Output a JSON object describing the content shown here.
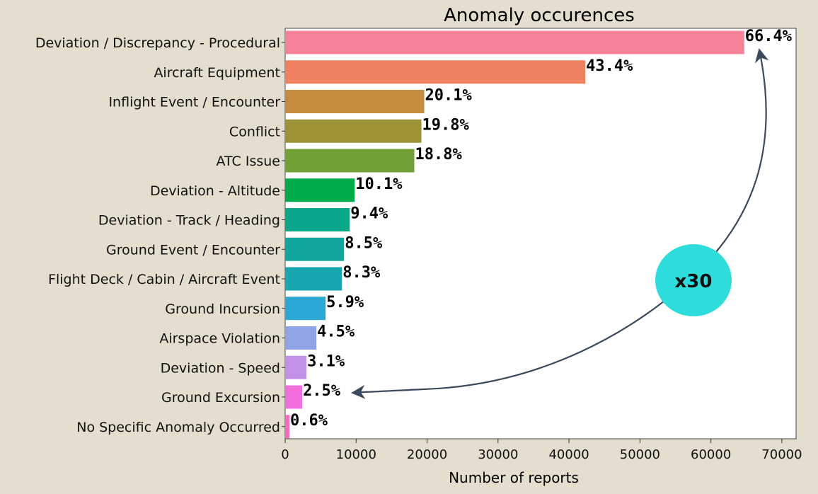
{
  "chart_data": {
    "type": "bar",
    "orientation": "horizontal",
    "title": "Anomaly occurences",
    "xlabel": "Number of reports",
    "ylabel": "",
    "xlim": [
      0,
      72000
    ],
    "xticks": [
      0,
      10000,
      20000,
      30000,
      40000,
      50000,
      60000,
      70000
    ],
    "grid": false,
    "categories": [
      "Deviation / Discrepancy - Procedural",
      "Aircraft Equipment",
      "Inflight Event / Encounter",
      "Conflict",
      "ATC Issue",
      "Deviation - Altitude",
      "Deviation - Track / Heading",
      "Ground Event / Encounter",
      "Flight Deck / Cabin / Aircraft Event",
      "Ground Incursion",
      "Airspace Violation",
      "Deviation - Speed",
      "Ground Excursion",
      "No Specific Anomaly Occurred"
    ],
    "values": [
      64700,
      42300,
      19600,
      19200,
      18200,
      9800,
      9100,
      8300,
      8000,
      5700,
      4400,
      3000,
      2400,
      600
    ],
    "labels": [
      "66.4%",
      "43.4%",
      "20.1%",
      "19.8%",
      "18.8%",
      "10.1%",
      "9.4%",
      "8.5%",
      "8.3%",
      "5.9%",
      "4.5%",
      "3.1%",
      "2.5%",
      "0.6%"
    ],
    "colors": [
      "#f6829a",
      "#ef8060",
      "#c48b3f",
      "#9c9336",
      "#72a037",
      "#00ab4a",
      "#0aa88a",
      "#10a69d",
      "#17a6b0",
      "#2da8d6",
      "#90a3e6",
      "#c390e8",
      "#f16fdc",
      "#f56bbd"
    ],
    "annotation": {
      "text": "x30",
      "color": "#2edcdc",
      "from_category": "Ground Excursion",
      "to_category": "Deviation / Discrepancy - Procedural"
    }
  }
}
